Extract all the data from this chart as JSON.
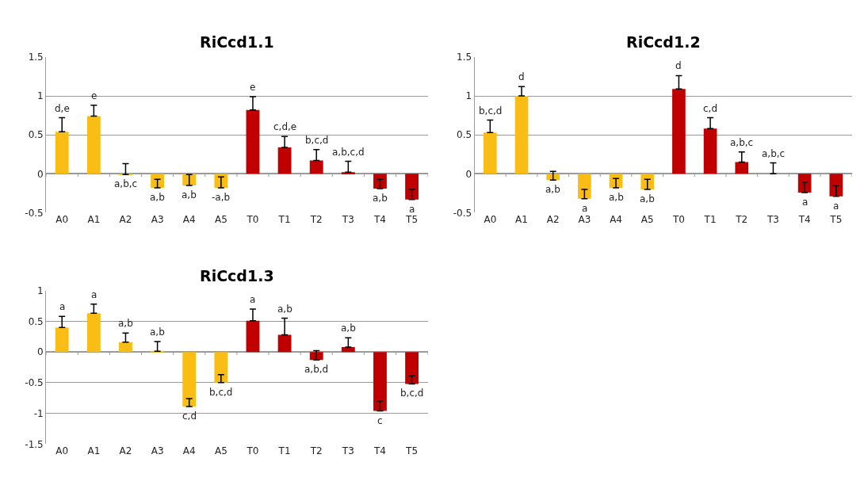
{
  "chart_data": [
    {
      "type": "bar",
      "title": "RiCcd1.1",
      "categories": [
        "A0",
        "A1",
        "A2",
        "A3",
        "A4",
        "A5",
        "T0",
        "T1",
        "T2",
        "T3",
        "T4",
        "T5"
      ],
      "values": [
        0.54,
        0.74,
        -0.01,
        -0.18,
        -0.15,
        -0.18,
        0.82,
        0.34,
        0.17,
        0.02,
        -0.19,
        -0.33
      ],
      "errors": [
        [
          0.54,
          0.72
        ],
        [
          0.74,
          0.88
        ],
        [
          -0.01,
          0.13
        ],
        [
          -0.18,
          -0.07
        ],
        [
          -0.15,
          -0.01
        ],
        [
          -0.18,
          -0.04
        ],
        [
          0.82,
          0.99
        ],
        [
          0.34,
          0.48
        ],
        [
          0.17,
          0.31
        ],
        [
          0.02,
          0.16
        ],
        [
          -0.19,
          -0.07
        ],
        [
          -0.33,
          -0.2
        ]
      ],
      "value_labels": [
        "d,e",
        "e",
        "a,b,c",
        "a,b",
        "a,b",
        "-a,b",
        "e",
        "c,d,e",
        "b,c,d",
        "a,b,c,d",
        "a,b",
        "a"
      ],
      "colors": [
        "#f9bd16",
        "#f9bd16",
        "#f9bd16",
        "#f9bd16",
        "#f9bd16",
        "#f9bd16",
        "#c00000",
        "#c00000",
        "#c00000",
        "#c00000",
        "#c00000",
        "#c00000"
      ],
      "ylim": [
        -0.5,
        1.5
      ],
      "yticks": [
        -0.5,
        0,
        0.5,
        1,
        1.5
      ],
      "grid": "y"
    },
    {
      "type": "bar",
      "title": "RiCcd1.2",
      "categories": [
        "A0",
        "A1",
        "A2",
        "A3",
        "A4",
        "A5",
        "T0",
        "T1",
        "T2",
        "T3",
        "T4",
        "T5"
      ],
      "values": [
        0.53,
        1.0,
        -0.08,
        -0.32,
        -0.18,
        -0.2,
        1.09,
        0.58,
        0.15,
        0,
        -0.24,
        -0.29
      ],
      "errors": [
        [
          0.53,
          0.69
        ],
        [
          1.0,
          1.12
        ],
        [
          -0.08,
          0.03
        ],
        [
          -0.32,
          -0.2
        ],
        [
          -0.18,
          -0.06
        ],
        [
          -0.2,
          -0.07
        ],
        [
          1.09,
          1.26
        ],
        [
          0.58,
          0.72
        ],
        [
          0.15,
          0.28
        ],
        [
          0,
          0.14
        ],
        [
          -0.24,
          -0.11
        ],
        [
          -0.29,
          -0.15
        ]
      ],
      "value_labels": [
        "b,c,d",
        "d",
        "a,b",
        "a",
        "a,b",
        "a,b",
        "d",
        "c,d",
        "a,b,c",
        "a,b,c",
        "a",
        "a"
      ],
      "colors": [
        "#f9bd16",
        "#f9bd16",
        "#f9bd16",
        "#f9bd16",
        "#f9bd16",
        "#f9bd16",
        "#c00000",
        "#c00000",
        "#c00000",
        "#c00000",
        "#c00000",
        "#c00000"
      ],
      "ylim": [
        -0.5,
        1.5
      ],
      "yticks": [
        -0.5,
        0,
        0.5,
        1,
        1.5
      ],
      "grid": "y"
    },
    {
      "type": "bar",
      "title": "RiCcd1.3",
      "categories": [
        "A0",
        "A1",
        "A2",
        "A3",
        "A4",
        "A5",
        "T0",
        "T1",
        "T2",
        "T3",
        "T4",
        "T5"
      ],
      "values": [
        0.4,
        0.63,
        0.16,
        0.01,
        -0.89,
        -0.5,
        0.51,
        0.28,
        -0.13,
        0.08,
        -0.96,
        -0.52
      ],
      "errors": [
        [
          0.4,
          0.58
        ],
        [
          0.63,
          0.78
        ],
        [
          0.16,
          0.31
        ],
        [
          0.01,
          0.17
        ],
        [
          -0.89,
          -0.76
        ],
        [
          -0.5,
          -0.37
        ],
        [
          0.51,
          0.7
        ],
        [
          0.28,
          0.55
        ],
        [
          -0.13,
          0.02
        ],
        [
          0.08,
          0.23
        ],
        [
          -0.96,
          -0.8
        ],
        [
          -0.52,
          -0.39
        ]
      ],
      "value_labels": [
        "a",
        "a",
        "a,b",
        "a,b",
        "c,d",
        "b,c,d",
        "a",
        "a,b",
        "a,b,d",
        "a,b",
        "c",
        "b,c,d"
      ],
      "colors": [
        "#f9bd16",
        "#f9bd16",
        "#f9bd16",
        "#f9bd16",
        "#f9bd16",
        "#f9bd16",
        "#c00000",
        "#c00000",
        "#c00000",
        "#c00000",
        "#c00000",
        "#c00000"
      ],
      "ylim": [
        -1.5,
        1
      ],
      "yticks": [
        -1.5,
        -1,
        -0.5,
        0,
        0.5,
        1
      ],
      "grid": "y"
    }
  ]
}
